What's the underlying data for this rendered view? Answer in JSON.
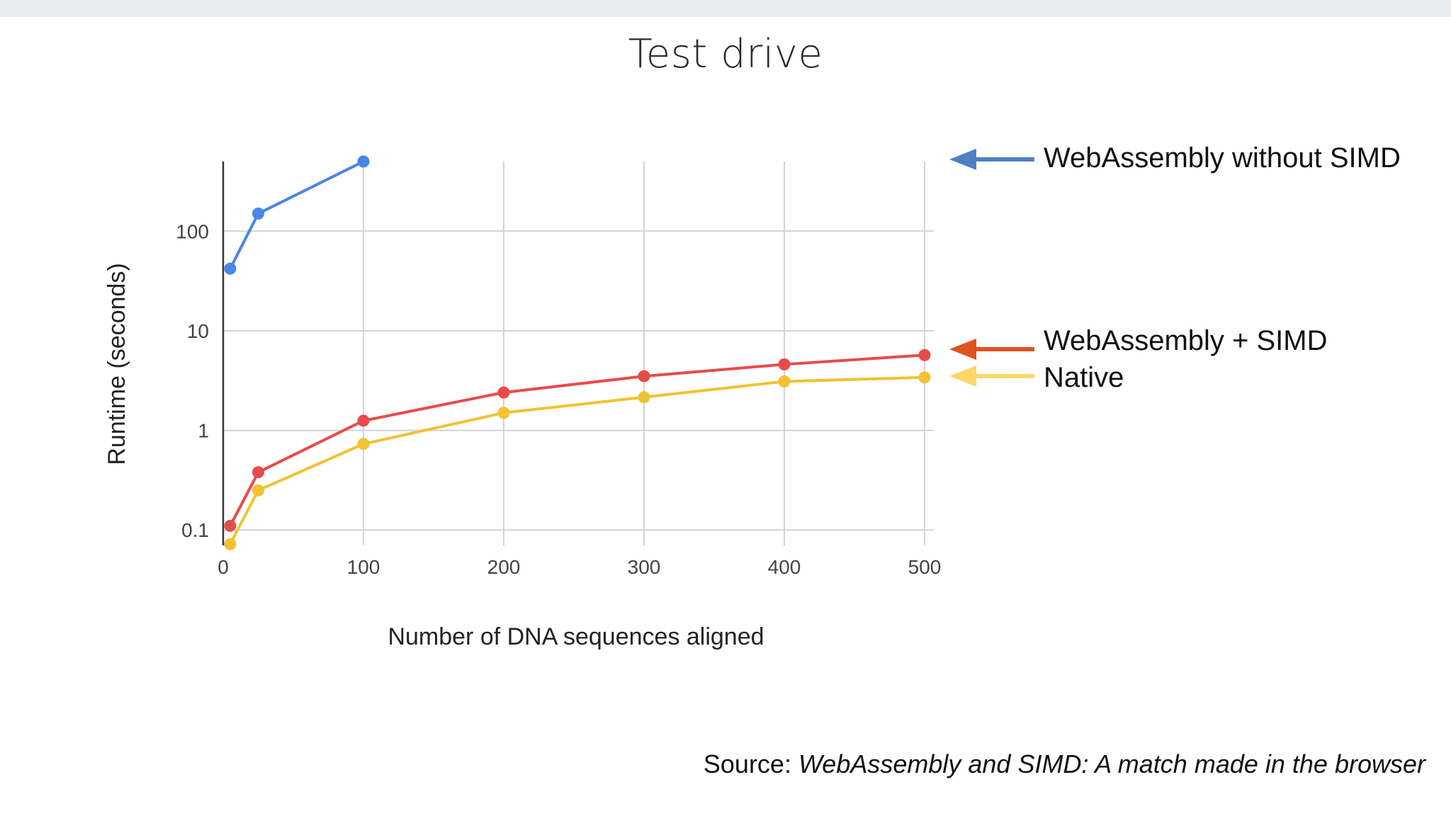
{
  "slide": {
    "title": "Test drive",
    "source_prefix": "Source: ",
    "source_title": "WebAssembly and SIMD: A match made in the browser"
  },
  "colors": {
    "webassembly_without_simd": "#4a86e8",
    "webassembly_simd": "#e84b4b",
    "native": "#f1c232",
    "arrow_blue": "#4e7fc4",
    "arrow_red": "#e0531f",
    "arrow_yellow": "#fdd868"
  },
  "chart_data": {
    "type": "line",
    "xlabel": "Number of DNA sequences aligned",
    "ylabel": "Runtime (seconds)",
    "y_scale": "log",
    "xlim": [
      0,
      500
    ],
    "ylim": [
      0.07,
      500
    ],
    "x_ticks": [
      0,
      100,
      200,
      300,
      400,
      500
    ],
    "x_tick_labels": [
      "0",
      "100",
      "200",
      "300",
      "400",
      "500"
    ],
    "y_ticks": [
      0.1,
      1,
      10,
      100
    ],
    "y_tick_labels": [
      "0.1",
      "1",
      "10",
      "100"
    ],
    "grid": true,
    "legend_placement": "right",
    "series": [
      {
        "name": "WebAssembly without SIMD",
        "color": "#4a86e8",
        "x": [
          5,
          25,
          100
        ],
        "y": [
          42,
          150,
          500
        ]
      },
      {
        "name": "WebAssembly + SIMD",
        "color": "#e84b4b",
        "x": [
          5,
          25,
          100,
          200,
          300,
          400,
          500
        ],
        "y": [
          0.11,
          0.38,
          1.25,
          2.4,
          3.5,
          4.6,
          5.7
        ]
      },
      {
        "name": "Native",
        "color": "#f1c232",
        "x": [
          5,
          25,
          100,
          200,
          300,
          400,
          500
        ],
        "y": [
          0.072,
          0.25,
          0.73,
          1.5,
          2.15,
          3.1,
          3.4
        ]
      }
    ]
  }
}
